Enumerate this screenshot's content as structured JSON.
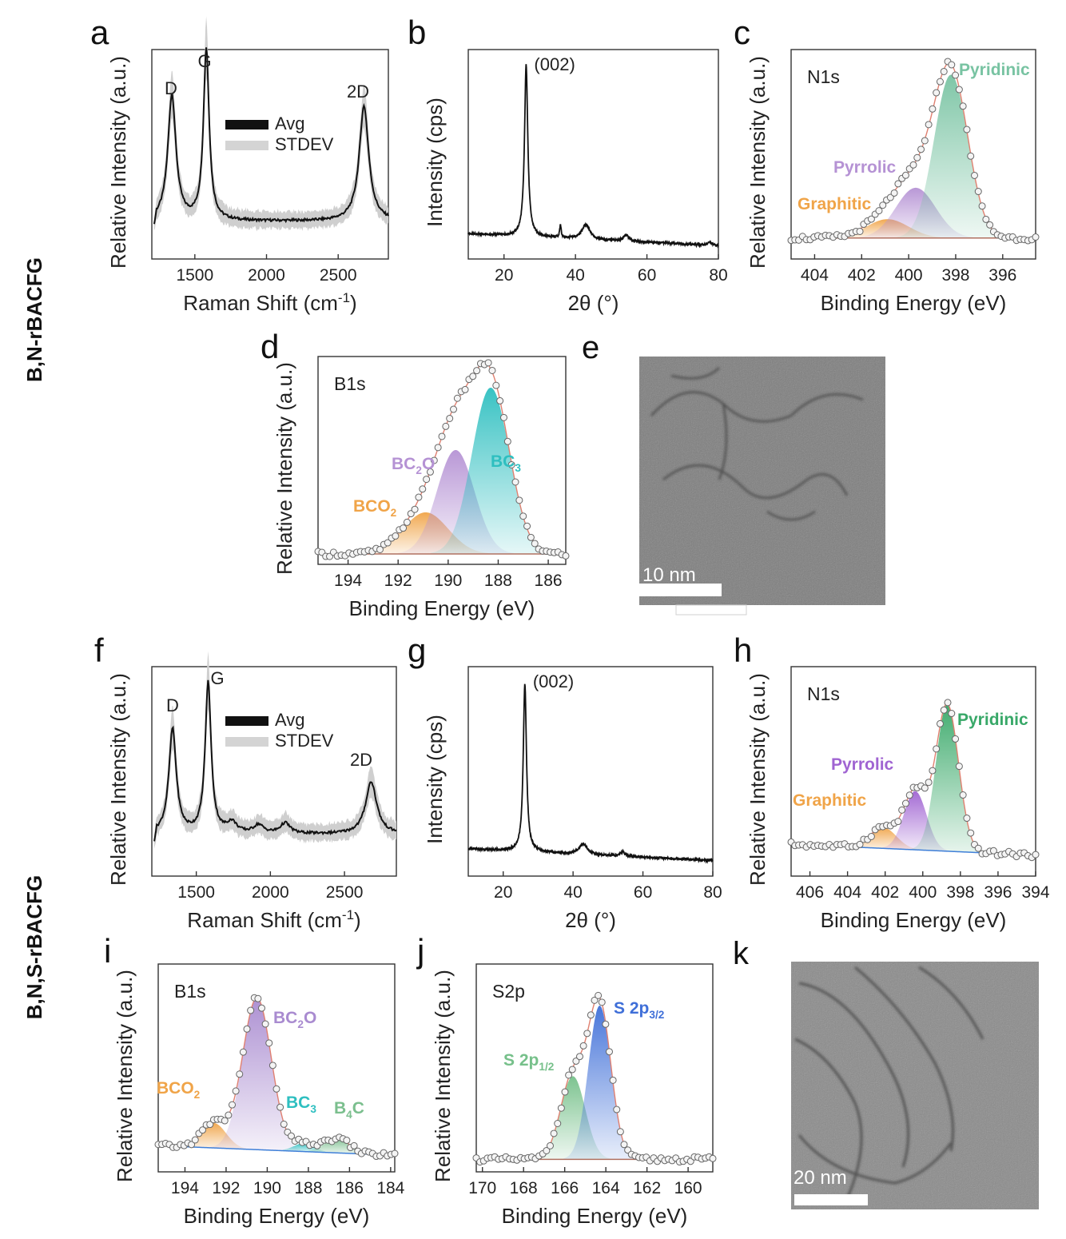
{
  "rows": [
    "B,N-rBACFG",
    "B,N,S-rBACFG"
  ],
  "colors": {
    "graphitic": "#f0a448",
    "pyrrolic": "#b592d4",
    "pyridinic": "#78c3a2",
    "bc3": "#2ebfc0",
    "bco2": "#f0a448",
    "bc2o": "#b592d4",
    "b4c": "#7bbf8e",
    "s2p12": "#76c08a",
    "s2p32": "#3f6fd8",
    "baseline": "#3f7fd8",
    "envelope": "#e08070"
  },
  "chart_data": [
    {
      "panel": "a",
      "type": "line",
      "ylabel": "Relative Intensity (a.u.)",
      "xlabel_pre": "Raman Shift (cm",
      "xlabel_sup": "-1",
      "xlabel_post": ")",
      "xlim": [
        1200,
        2850
      ],
      "ylim": [
        0,
        1.0
      ],
      "xticks": [
        1500,
        2000,
        2500
      ],
      "legend": [
        "Avg",
        "STDEV"
      ],
      "peak_labels": [
        "D",
        "G",
        "2D"
      ],
      "peaks": [
        {
          "center": 1340,
          "height": 0.6,
          "width": 34
        },
        {
          "center": 1580,
          "height": 0.82,
          "width": 24
        },
        {
          "center": 2680,
          "height": 0.55,
          "width": 40
        }
      ],
      "baseline_level": 0.18
    },
    {
      "panel": "b",
      "type": "line",
      "ylabel": "Intensity (cps)",
      "xlabel": "2θ (°)",
      "xlim": [
        10,
        80
      ],
      "ylim": [
        0,
        1.0
      ],
      "xticks": [
        20,
        40,
        60,
        80
      ],
      "annotation": "(002)",
      "peaks": [
        {
          "center": 26.2,
          "height": 0.82,
          "width": 0.55
        },
        {
          "center": 35.8,
          "height": 0.06,
          "width": 0.25
        },
        {
          "center": 42.9,
          "height": 0.07,
          "width": 1.3
        },
        {
          "center": 54.2,
          "height": 0.03,
          "width": 0.8
        },
        {
          "center": 77.6,
          "height": 0.015,
          "width": 0.6
        }
      ],
      "baseline_level": 0.12
    },
    {
      "panel": "c",
      "type": "area",
      "ylabel": "Relative Intensity (a.u.)",
      "xlabel": "Binding Energy (eV)",
      "xlim": [
        405,
        394.6
      ],
      "ylim": [
        0,
        1.0
      ],
      "xticks": [
        404,
        402,
        400,
        398,
        396
      ],
      "title": "N1s",
      "components": [
        {
          "name": "Graphitic",
          "center": 400.9,
          "height": 0.09,
          "width": 0.9,
          "color": "#f0a448"
        },
        {
          "name": "Pyrrolic",
          "center": 399.7,
          "height": 0.24,
          "width": 0.85,
          "color": "#b592d4"
        },
        {
          "name": "Pyridinic",
          "center": 398.2,
          "height": 0.78,
          "width": 0.72,
          "color": "#78c3a2"
        }
      ],
      "baseline_level": 0.1
    },
    {
      "panel": "d",
      "type": "area",
      "ylabel": "Relative Intensity (a.u.)",
      "xlabel": "Binding Energy (eV)",
      "xlim": [
        195.2,
        185.3
      ],
      "ylim": [
        0,
        1.0
      ],
      "xticks": [
        194,
        192,
        190,
        188,
        186
      ],
      "title": "B1s",
      "components": [
        {
          "name": "BCO",
          "sub": "2",
          "post": "",
          "center": 190.9,
          "height": 0.2,
          "width": 0.9,
          "color": "#f0a448"
        },
        {
          "name": "BC",
          "sub": "2",
          "post": "O",
          "center": 189.7,
          "height": 0.5,
          "width": 0.75,
          "color": "#b592d4"
        },
        {
          "name": "BC",
          "sub": "3",
          "post": "",
          "center": 188.3,
          "height": 0.8,
          "width": 0.75,
          "color": "#2ebfc0"
        }
      ],
      "baseline_level": 0.05
    },
    {
      "panel": "f",
      "type": "line",
      "ylabel": "Relative Intensity (a.u.)",
      "xlabel_pre": "Raman Shift (cm",
      "xlabel_sup": "-1",
      "xlabel_post": ")",
      "xlim": [
        1200,
        2850
      ],
      "ylim": [
        0,
        1.0
      ],
      "xticks": [
        1500,
        2000,
        2500
      ],
      "legend": [
        "Avg",
        "STDEV"
      ],
      "peak_labels": [
        "D",
        "G",
        "2D"
      ],
      "peaks": [
        {
          "center": 1340,
          "height": 0.5,
          "width": 30
        },
        {
          "center": 1580,
          "height": 0.72,
          "width": 24
        },
        {
          "center": 1740,
          "height": 0.05,
          "width": 40
        },
        {
          "center": 1920,
          "height": 0.04,
          "width": 40
        },
        {
          "center": 2100,
          "height": 0.05,
          "width": 40
        },
        {
          "center": 2680,
          "height": 0.25,
          "width": 45
        }
      ],
      "baseline_level": 0.2
    },
    {
      "panel": "g",
      "type": "line",
      "ylabel": "Intensity (cps)",
      "xlabel": "2θ (°)",
      "xlim": [
        10,
        80
      ],
      "ylim": [
        0,
        1.0
      ],
      "xticks": [
        20,
        40,
        60,
        80
      ],
      "annotation": "(002)",
      "peaks": [
        {
          "center": 26.2,
          "height": 0.8,
          "width": 0.55
        },
        {
          "center": 42.9,
          "height": 0.05,
          "width": 1.3
        },
        {
          "center": 54.2,
          "height": 0.02,
          "width": 0.8
        }
      ],
      "baseline_level": 0.13
    },
    {
      "panel": "h",
      "type": "area",
      "ylabel": "Relative Intensity (a.u.)",
      "xlabel": "Binding Energy (eV)",
      "xlim": [
        407,
        394
      ],
      "ylim": [
        0,
        1.0
      ],
      "xticks": [
        406,
        404,
        402,
        400,
        398,
        396,
        394
      ],
      "title": "N1s",
      "components": [
        {
          "name": "Graphitic",
          "center": 402.1,
          "height": 0.1,
          "width": 0.7,
          "color": "#f0a448"
        },
        {
          "name": "Pyrrolic",
          "center": 400.4,
          "height": 0.28,
          "width": 0.6,
          "color": "#a064d2"
        },
        {
          "name": "Pyridinic",
          "center": 398.7,
          "height": 0.7,
          "width": 0.6,
          "color": "#38a868"
        }
      ],
      "baseline_level": 0.1
    },
    {
      "panel": "i",
      "type": "area",
      "ylabel": "Relative Intensity (a.u.)",
      "xlabel": "Binding Energy (eV)",
      "xlim": [
        195.3,
        183.8
      ],
      "ylim": [
        0,
        1.0
      ],
      "xticks": [
        194,
        192,
        190,
        188,
        186,
        184
      ],
      "title": "B1s",
      "components": [
        {
          "name": "BCO",
          "sub": "2",
          "post": "",
          "center": 192.6,
          "height": 0.12,
          "width": 0.6,
          "color": "#f0a448"
        },
        {
          "name": "BC",
          "sub": "2",
          "post": "O",
          "center": 190.5,
          "height": 0.73,
          "width": 0.7,
          "color": "#a98bd0"
        },
        {
          "name": "BC",
          "sub": "3",
          "post": "",
          "center": 188.2,
          "height": 0.04,
          "width": 0.5,
          "color": "#2ebfc0"
        },
        {
          "name": "B",
          "sub": "4",
          "post": "C",
          "center": 186.6,
          "height": 0.07,
          "width": 0.6,
          "color": "#7bbf8e"
        }
      ],
      "baseline_level": 0.08
    },
    {
      "panel": "j",
      "type": "area",
      "ylabel": "Relative Intensity (a.u.)",
      "xlabel": "Binding Energy (eV)",
      "xlim": [
        170.3,
        158.8
      ],
      "ylim": [
        0,
        1.0
      ],
      "xticks": [
        170,
        168,
        166,
        164,
        162,
        160
      ],
      "title": "S2p",
      "components": [
        {
          "name": "S 2p",
          "sub": "1/2",
          "post": "",
          "center": 165.6,
          "height": 0.4,
          "width": 0.6,
          "color": "#76c08a"
        },
        {
          "name": "S 2p",
          "sub": "3/2",
          "post": "",
          "center": 164.3,
          "height": 0.74,
          "width": 0.55,
          "color": "#3f6fd8"
        }
      ],
      "baseline_level": 0.06
    }
  ],
  "tem": [
    {
      "panel": "e",
      "scale": "10 nm"
    },
    {
      "panel": "k",
      "scale": "20 nm"
    }
  ]
}
